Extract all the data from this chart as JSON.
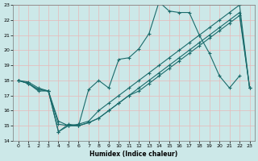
{
  "xlabel": "Humidex (Indice chaleur)",
  "xlim": [
    -0.5,
    23.5
  ],
  "ylim": [
    14,
    23
  ],
  "xticks": [
    0,
    1,
    2,
    3,
    4,
    5,
    6,
    7,
    8,
    9,
    10,
    11,
    12,
    13,
    14,
    15,
    16,
    17,
    18,
    19,
    20,
    21,
    22,
    23
  ],
  "yticks": [
    14,
    15,
    16,
    17,
    18,
    19,
    20,
    21,
    22,
    23
  ],
  "bg_color": "#cce8e8",
  "grid_color": "#e8b8b8",
  "line_color": "#1a6b6b",
  "s1_x": [
    0,
    1,
    2,
    3,
    4,
    5,
    6,
    7,
    8,
    9,
    10,
    11,
    12,
    13,
    14,
    15,
    16,
    17,
    18,
    19,
    20,
    21,
    22
  ],
  "s1_y": [
    18.0,
    17.8,
    17.4,
    17.3,
    14.6,
    15.1,
    15.0,
    17.4,
    18.0,
    17.5,
    19.4,
    19.5,
    20.1,
    21.1,
    23.2,
    22.6,
    22.5,
    22.5,
    21.0,
    19.8,
    18.3,
    17.5,
    18.3
  ],
  "s2_x": [
    0,
    1,
    2,
    3,
    4,
    5,
    6,
    7,
    8,
    9,
    10,
    11,
    12,
    13,
    14,
    15,
    16,
    17,
    18,
    19,
    20,
    21,
    22,
    23
  ],
  "s2_y": [
    18.0,
    17.8,
    17.4,
    17.3,
    15.3,
    15.0,
    15.1,
    15.3,
    16.0,
    16.5,
    17.0,
    17.5,
    18.0,
    18.5,
    19.0,
    19.5,
    20.0,
    20.5,
    21.0,
    21.5,
    22.0,
    22.5,
    23.0,
    17.5
  ],
  "s3_x": [
    0,
    1,
    2,
    3,
    4,
    5,
    6,
    7,
    8,
    9,
    10,
    11,
    12,
    13,
    14,
    15,
    16,
    17,
    18,
    19,
    20,
    21,
    22,
    23
  ],
  "s3_y": [
    18.0,
    17.8,
    17.3,
    17.3,
    15.1,
    15.0,
    15.0,
    15.2,
    15.5,
    16.0,
    16.5,
    17.0,
    17.5,
    18.0,
    18.5,
    19.0,
    19.5,
    20.0,
    20.5,
    21.0,
    21.5,
    22.0,
    22.5,
    17.5
  ],
  "s4_x": [
    0,
    1,
    2,
    3,
    4,
    5,
    6,
    7,
    8,
    9,
    10,
    11,
    12,
    13,
    14,
    15,
    16,
    17,
    18,
    19,
    20,
    21,
    22,
    23
  ],
  "s4_y": [
    18.0,
    17.9,
    17.5,
    17.3,
    14.6,
    15.0,
    15.0,
    15.2,
    15.5,
    16.0,
    16.5,
    17.0,
    17.3,
    17.8,
    18.3,
    18.8,
    19.3,
    19.8,
    20.3,
    20.8,
    21.3,
    21.8,
    22.3,
    17.5
  ]
}
